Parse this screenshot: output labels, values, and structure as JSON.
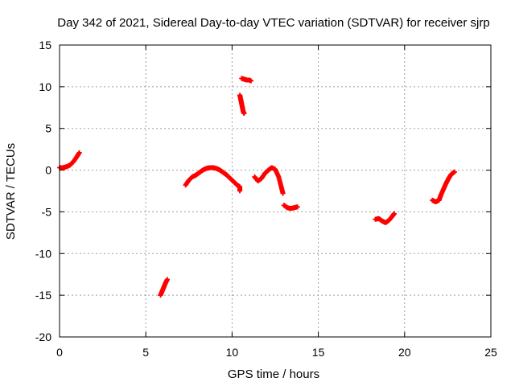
{
  "chart_data": {
    "type": "scatter",
    "title": "Day 342 of 2021, Sidereal Day-to-day VTEC variation (SDTVAR) for receiver sjrp",
    "xlabel": "GPS time / hours",
    "ylabel": "SDTVAR / TECUs",
    "xlim": [
      0,
      25
    ],
    "ylim": [
      -20,
      15
    ],
    "xticks": [
      0,
      5,
      10,
      15,
      20,
      25
    ],
    "yticks": [
      -20,
      -15,
      -10,
      -5,
      0,
      5,
      10,
      15
    ],
    "grid": true,
    "marker": "+",
    "color": "#ff0000",
    "series": [
      {
        "name": "SDTVAR",
        "segments": [
          {
            "x": [
              0.0,
              0.2,
              0.4,
              0.6,
              0.8,
              1.0,
              1.15
            ],
            "y": [
              0.3,
              0.3,
              0.4,
              0.6,
              1.0,
              1.6,
              2.1
            ]
          },
          {
            "x": [
              5.85,
              5.95,
              6.05,
              6.15,
              6.25
            ],
            "y": [
              -15.0,
              -14.5,
              -14.0,
              -13.5,
              -13.1
            ]
          },
          {
            "x": [
              7.3,
              7.5,
              7.7,
              7.9,
              8.1,
              8.3,
              8.5,
              8.7,
              8.9,
              9.1,
              9.3,
              9.5,
              9.7,
              9.9,
              10.1,
              10.3,
              10.45,
              10.45
            ],
            "y": [
              -1.8,
              -1.2,
              -0.8,
              -0.6,
              -0.3,
              0.0,
              0.2,
              0.3,
              0.3,
              0.2,
              0.0,
              -0.3,
              -0.6,
              -1.0,
              -1.4,
              -1.8,
              -2.0,
              -2.5
            ]
          },
          {
            "x": [
              10.45,
              10.5,
              10.55,
              10.6,
              10.65,
              10.7
            ],
            "y": [
              9.0,
              8.5,
              8.0,
              7.5,
              7.0,
              6.8
            ]
          },
          {
            "x": [
              10.55,
              10.7,
              10.85,
              11.0,
              11.1
            ],
            "y": [
              11.0,
              10.9,
              10.8,
              10.8,
              10.7
            ]
          },
          {
            "x": [
              11.3,
              11.5,
              11.7,
              11.9,
              12.1,
              12.3,
              12.5,
              12.7,
              12.85,
              12.95
            ],
            "y": [
              -0.8,
              -1.3,
              -1.0,
              -0.4,
              0.0,
              0.3,
              0.1,
              -0.8,
              -2.0,
              -2.8
            ]
          },
          {
            "x": [
              13.0,
              13.2,
              13.4,
              13.6,
              13.8
            ],
            "y": [
              -4.2,
              -4.5,
              -4.6,
              -4.5,
              -4.4
            ]
          },
          {
            "x": [
              18.3,
              18.5,
              18.7,
              18.9,
              19.1,
              19.3,
              19.4
            ],
            "y": [
              -5.9,
              -5.8,
              -6.1,
              -6.3,
              -6.0,
              -5.5,
              -5.2
            ]
          },
          {
            "x": [
              21.6,
              21.8,
              22.0,
              22.1,
              22.25,
              22.4,
              22.55,
              22.7,
              22.9
            ],
            "y": [
              -3.6,
              -3.8,
              -3.6,
              -3.0,
              -2.3,
              -1.6,
              -1.0,
              -0.5,
              -0.2
            ]
          }
        ]
      }
    ]
  }
}
